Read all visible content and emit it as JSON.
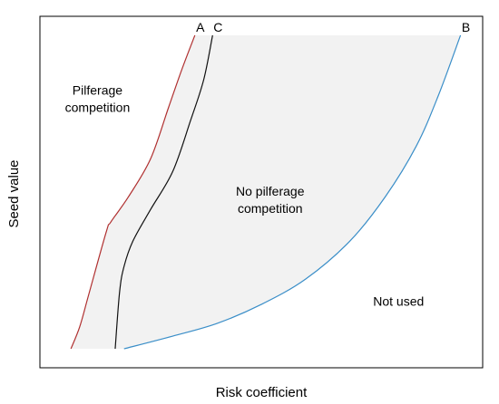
{
  "chart_data": {
    "type": "line",
    "xlabel": "Risk coefficient",
    "ylabel": "Seed value",
    "grid": false,
    "legend": "none",
    "axis_ticks": false,
    "shaded_region": {
      "between": [
        "A",
        "B"
      ],
      "color": "#f2f2f2"
    },
    "series": [
      {
        "name": "A",
        "color": "#b03030",
        "points": [
          [
            0.07,
            0.0
          ],
          [
            0.09,
            0.07
          ],
          [
            0.11,
            0.17
          ],
          [
            0.15,
            0.37
          ],
          [
            0.16,
            0.4
          ],
          [
            0.2,
            0.48
          ],
          [
            0.25,
            0.6
          ],
          [
            0.29,
            0.76
          ],
          [
            0.32,
            0.88
          ],
          [
            0.35,
            0.99
          ]
        ]
      },
      {
        "name": "C",
        "color": "#111111",
        "points": [
          [
            0.17,
            0.0
          ],
          [
            0.18,
            0.18
          ],
          [
            0.19,
            0.26
          ],
          [
            0.21,
            0.34
          ],
          [
            0.25,
            0.44
          ],
          [
            0.3,
            0.56
          ],
          [
            0.34,
            0.72
          ],
          [
            0.37,
            0.85
          ],
          [
            0.39,
            0.99
          ]
        ]
      },
      {
        "name": "B",
        "color": "#3a8ec8",
        "points": [
          [
            0.19,
            0.0
          ],
          [
            0.3,
            0.04
          ],
          [
            0.4,
            0.08
          ],
          [
            0.5,
            0.14
          ],
          [
            0.6,
            0.22
          ],
          [
            0.7,
            0.34
          ],
          [
            0.78,
            0.48
          ],
          [
            0.85,
            0.64
          ],
          [
            0.9,
            0.8
          ],
          [
            0.95,
            0.99
          ]
        ]
      }
    ],
    "region_labels": [
      {
        "text_lines": [
          "Pilferage",
          "competition"
        ],
        "x": 0.13,
        "y": 0.79
      },
      {
        "text_lines": [
          "No pilferage",
          "competition"
        ],
        "x": 0.52,
        "y": 0.47
      },
      {
        "text_lines": [
          "Not used"
        ],
        "x": 0.81,
        "y": 0.15
      }
    ],
    "xlim": [
      0,
      1
    ],
    "ylim": [
      -0.06,
      1.05
    ]
  }
}
